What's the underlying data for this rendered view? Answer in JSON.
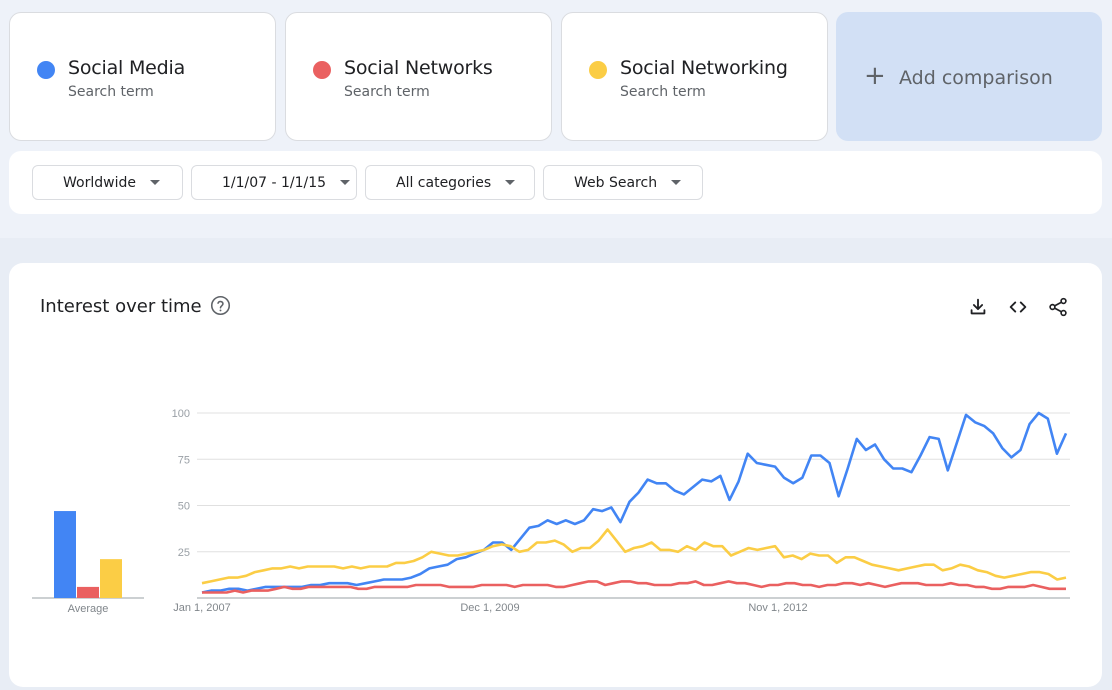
{
  "terms": [
    {
      "name": "Social Media",
      "sublabel": "Search term",
      "color": "#4285f4"
    },
    {
      "name": "Social Networks",
      "sublabel": "Search term",
      "color": "#ea6060"
    },
    {
      "name": "Social Networking",
      "sublabel": "Search term",
      "color": "#fbcd45"
    }
  ],
  "add_comparison": {
    "icon": "plus-icon",
    "label": "Add comparison"
  },
  "filters": {
    "region": "Worldwide",
    "date_range": "1/1/07 - 1/1/15",
    "category": "All categories",
    "search_type": "Web Search"
  },
  "chart_card": {
    "title": "Interest over time",
    "icons": [
      "help-icon",
      "download-icon",
      "embed-icon",
      "share-icon"
    ]
  },
  "chart_data": {
    "type": "line",
    "ylim": [
      0,
      100
    ],
    "yticks": [
      25,
      50,
      75,
      100
    ],
    "xtick_labels": [
      "Jan 1, 2007",
      "Dec 1, 2009",
      "Nov 1, 2012"
    ],
    "average_label": "Average",
    "averages": [
      47,
      6,
      21
    ],
    "series": [
      {
        "name": "Social Media",
        "values": [
          3,
          4,
          4,
          5,
          5,
          4,
          5,
          6,
          6,
          6,
          6,
          6,
          7,
          7,
          8,
          8,
          8,
          7,
          8,
          9,
          10,
          10,
          10,
          11,
          13,
          16,
          17,
          18,
          21,
          22,
          24,
          26,
          30,
          30,
          26,
          32,
          38,
          39,
          42,
          40,
          42,
          40,
          42,
          48,
          47,
          49,
          41,
          52,
          57,
          64,
          62,
          62,
          58,
          56,
          60,
          64,
          63,
          66,
          53,
          63,
          78,
          73,
          72,
          71,
          65,
          62,
          65,
          77,
          77,
          73,
          55,
          70,
          86,
          80,
          83,
          75,
          70,
          70,
          68,
          77,
          87,
          86,
          69,
          84,
          99,
          95,
          93,
          89,
          81,
          76,
          80,
          94,
          100,
          97,
          78,
          89
        ]
      },
      {
        "name": "Social Networks",
        "values": [
          3,
          3,
          3,
          3,
          4,
          3,
          4,
          4,
          4,
          5,
          6,
          5,
          5,
          6,
          6,
          6,
          6,
          6,
          6,
          5,
          5,
          6,
          6,
          6,
          6,
          6,
          7,
          7,
          7,
          7,
          6,
          6,
          6,
          6,
          7,
          7,
          7,
          7,
          6,
          7,
          7,
          7,
          7,
          6,
          6,
          7,
          8,
          9,
          9,
          7,
          8,
          9,
          9,
          8,
          8,
          7,
          7,
          7,
          8,
          8,
          9,
          7,
          7,
          8,
          9,
          8,
          8,
          7,
          6,
          7,
          7,
          8,
          8,
          7,
          7,
          6,
          7,
          7,
          8,
          8,
          7,
          8,
          7,
          6,
          7,
          8,
          8,
          8,
          7,
          7,
          7,
          8,
          7,
          7,
          6,
          6,
          5,
          5,
          6,
          6,
          6,
          7,
          6,
          5,
          5,
          5
        ]
      },
      {
        "name": "Social Networking",
        "values": [
          8,
          9,
          10,
          11,
          11,
          12,
          14,
          15,
          16,
          16,
          17,
          16,
          17,
          17,
          17,
          17,
          16,
          17,
          16,
          17,
          17,
          17,
          19,
          19,
          20,
          22,
          25,
          24,
          23,
          23,
          24,
          25,
          26,
          28,
          29,
          28,
          25,
          26,
          30,
          30,
          31,
          29,
          25,
          27,
          27,
          31,
          37,
          31,
          25,
          27,
          28,
          30,
          26,
          26,
          25,
          28,
          26,
          30,
          28,
          28,
          23,
          25,
          27,
          26,
          27,
          28,
          22,
          23,
          21,
          24,
          23,
          23,
          19,
          22,
          22,
          20,
          18,
          17,
          16,
          15,
          16,
          17,
          18,
          18,
          15,
          16,
          18,
          17,
          15,
          14,
          12,
          11,
          12,
          13,
          14,
          14,
          13,
          10,
          11
        ]
      }
    ]
  }
}
